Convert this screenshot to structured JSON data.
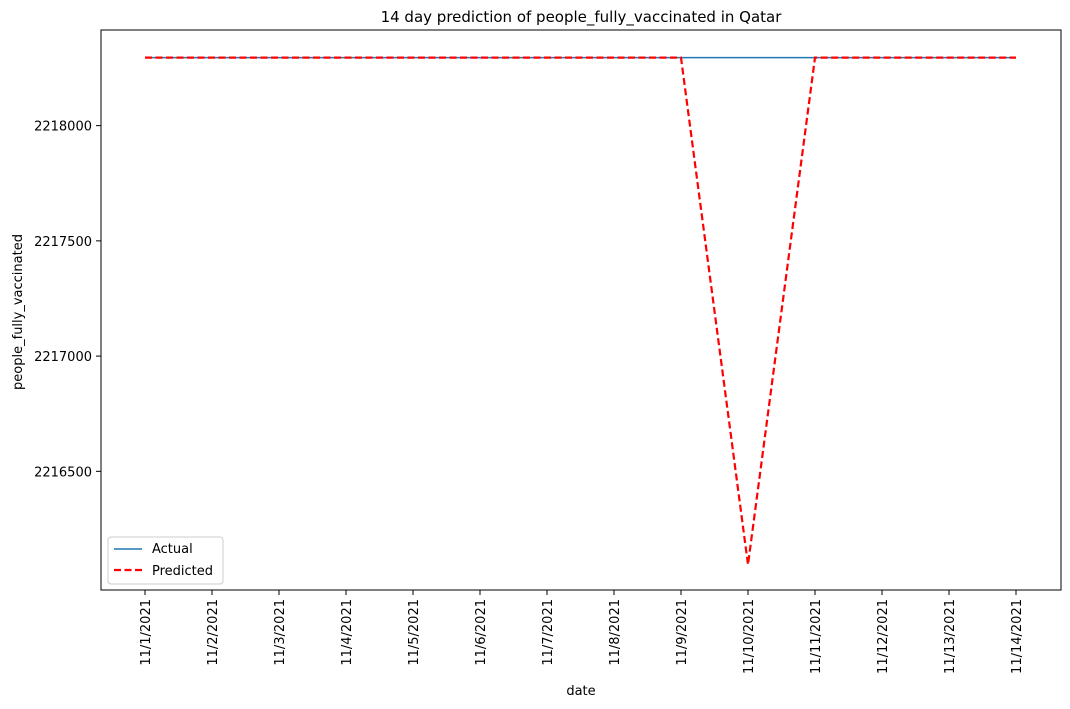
{
  "chart_data": {
    "type": "line",
    "title": "14 day prediction of people_fully_vaccinated in Qatar",
    "xlabel": "date",
    "ylabel": "people_fully_vaccinated",
    "x": [
      "11/1/2021",
      "11/2/2021",
      "11/3/2021",
      "11/4/2021",
      "11/5/2021",
      "11/6/2021",
      "11/7/2021",
      "11/8/2021",
      "11/9/2021",
      "11/10/2021",
      "11/11/2021",
      "11/12/2021",
      "11/13/2021",
      "11/14/2021"
    ],
    "yticks": [
      2216500,
      2217000,
      2217500,
      2218000
    ],
    "ylim": [
      2215985,
      2218415
    ],
    "series": [
      {
        "name": "Actual",
        "color": "#1f77b4",
        "style": "solid",
        "values": [
          2218295,
          2218295,
          2218295,
          2218295,
          2218295,
          2218295,
          2218295,
          2218295,
          2218295,
          2218295,
          2218295,
          2218295,
          2218295,
          2218295
        ]
      },
      {
        "name": "Predicted",
        "color": "#ff0000",
        "style": "dashed",
        "values": [
          2218295,
          2218295,
          2218295,
          2218295,
          2218295,
          2218295,
          2218295,
          2218295,
          2218295,
          2216095,
          2218295,
          2218295,
          2218295,
          2218295
        ]
      }
    ],
    "grid": false,
    "legend": "lower-left"
  }
}
